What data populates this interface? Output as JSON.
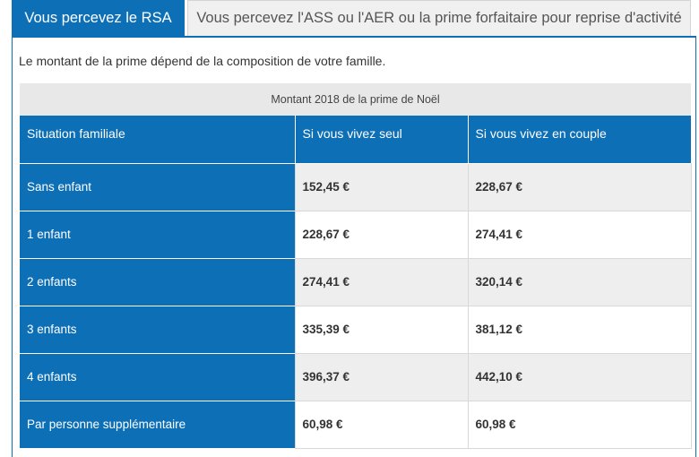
{
  "tabs": [
    {
      "label": "Vous percevez le RSA",
      "active": true
    },
    {
      "label": "Vous percevez l'ASS ou l'AER ou la prime forfaitaire pour reprise d'activité",
      "active": false
    }
  ],
  "intro": "Le montant de la prime dépend de la composition de votre famille.",
  "table": {
    "caption": "Montant 2018 de la prime de Noël",
    "headers": [
      "Situation familiale",
      "Si vous vivez seul",
      "Si vous vivez en couple"
    ],
    "rows": [
      {
        "label": "Sans enfant",
        "seul": "152,45 €",
        "couple": "228,67 €"
      },
      {
        "label": "1 enfant",
        "seul": "228,67 €",
        "couple": "274,41 €"
      },
      {
        "label": "2 enfants",
        "seul": "274,41 €",
        "couple": "320,14 €"
      },
      {
        "label": "3 enfants",
        "seul": "335,39 €",
        "couple": "381,12 €"
      },
      {
        "label": "4 enfants",
        "seul": "396,37 €",
        "couple": "442,10 €"
      },
      {
        "label": "Par personne supplémentaire",
        "seul": "60,98 €",
        "couple": "60,98 €"
      }
    ]
  },
  "colors": {
    "accent": "#0d6fb6",
    "stripe": "#eeeeee",
    "caption_bg": "#e8e8e8"
  }
}
